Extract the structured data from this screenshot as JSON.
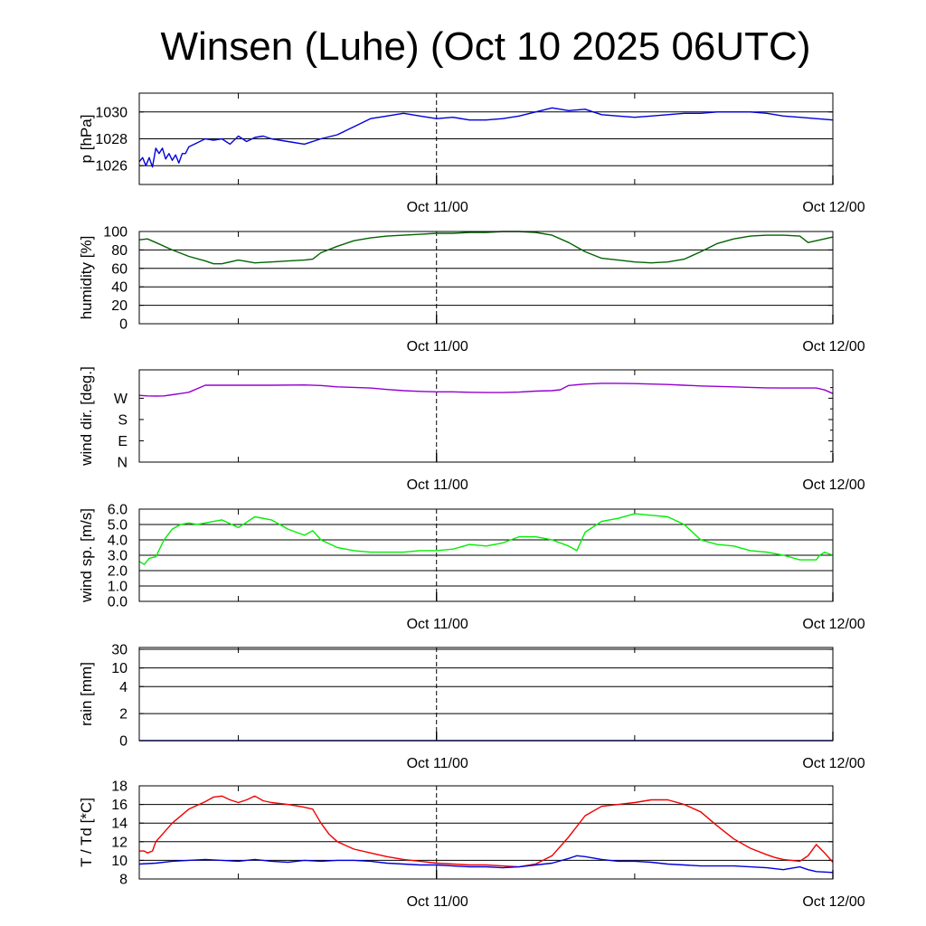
{
  "title": "Winsen (Luhe) (Oct 10 2025 06UTC)",
  "colors": {
    "pressure": "#0000dd",
    "humidity": "#006400",
    "wind_dir": "#9400d3",
    "wind_speed": "#00ee00",
    "rain": "#0000aa",
    "temperature": "#ee0000",
    "dewpoint": "#0000dd"
  },
  "chart_data": [
    {
      "type": "line",
      "ylabel": "p [hPa]",
      "ylim": [
        1024.6,
        1031.4
      ],
      "yticks": [
        1026,
        1028,
        1030
      ],
      "ytick_labels": [
        "1026",
        "1028",
        "1030"
      ],
      "grid": "horizontal",
      "x_unit": "hours since Oct 10 06UTC",
      "xticks": [
        18,
        42
      ],
      "xtick_labels": [
        "Oct 11/00",
        "Oct 12/00"
      ],
      "series": [
        {
          "color_key": "pressure",
          "x": [
            0,
            0.2,
            0.4,
            0.6,
            0.8,
            1.0,
            1.2,
            1.4,
            1.6,
            1.8,
            2.0,
            2.2,
            2.4,
            2.6,
            2.8,
            3,
            3.5,
            4,
            4.5,
            5,
            5.5,
            6,
            6.5,
            7,
            7.5,
            8,
            9,
            10,
            11,
            12,
            13,
            14,
            15,
            16,
            17,
            18,
            19,
            20,
            21,
            22,
            23,
            24,
            25,
            26,
            27,
            28,
            29,
            30,
            31,
            32,
            33,
            34,
            35,
            36,
            37,
            38,
            39,
            40,
            41,
            42
          ],
          "y": [
            1026.3,
            1026.6,
            1026.0,
            1026.6,
            1025.9,
            1027.3,
            1026.9,
            1027.3,
            1026.5,
            1026.9,
            1026.4,
            1026.8,
            1026.2,
            1026.9,
            1026.9,
            1027.4,
            1027.7,
            1028.0,
            1027.9,
            1028.0,
            1027.6,
            1028.2,
            1027.8,
            1028.1,
            1028.2,
            1028.0,
            1027.8,
            1027.6,
            1028.0,
            1028.3,
            1028.9,
            1029.5,
            1029.7,
            1029.9,
            1029.7,
            1029.5,
            1029.6,
            1029.4,
            1029.4,
            1029.5,
            1029.7,
            1030.0,
            1030.3,
            1030.1,
            1030.2,
            1029.8,
            1029.7,
            1029.6,
            1029.7,
            1029.8,
            1029.9,
            1029.9,
            1030.0,
            1030.0,
            1030.0,
            1029.9,
            1029.7,
            1029.6,
            1029.5,
            1029.4
          ]
        }
      ]
    },
    {
      "type": "line",
      "ylabel": "humidity [%]",
      "ylim": [
        0,
        100
      ],
      "yticks": [
        0,
        20,
        40,
        60,
        80,
        100
      ],
      "ytick_labels": [
        "0",
        "20",
        "40",
        "60",
        "80",
        "100"
      ],
      "grid": "horizontal",
      "xticks": [
        18,
        42
      ],
      "xtick_labels": [
        "Oct 11/00",
        "Oct 12/00"
      ],
      "series": [
        {
          "color_key": "humidity",
          "x": [
            0,
            0.5,
            1,
            2,
            3,
            4,
            4.5,
            5,
            6,
            7,
            8,
            9,
            10,
            10.5,
            11,
            12,
            13,
            14,
            15,
            16,
            17,
            18,
            19,
            20,
            21,
            22,
            23,
            24,
            25,
            26,
            27,
            28,
            29,
            30,
            31,
            32,
            33,
            34,
            35,
            36,
            37,
            38,
            39,
            40,
            40.5,
            41,
            42
          ],
          "y": [
            91,
            92,
            88,
            80,
            73,
            68,
            65,
            65,
            69,
            66,
            67,
            68,
            69,
            70,
            77,
            84,
            90,
            93,
            95,
            96,
            97,
            98,
            98,
            99,
            99,
            100,
            100,
            99,
            96,
            88,
            78,
            71,
            69,
            67,
            66,
            67,
            70,
            78,
            87,
            92,
            95,
            96,
            96,
            95,
            88,
            90,
            94
          ]
        }
      ]
    },
    {
      "type": "line",
      "ylabel": "wind dir. [deg.]",
      "ylim": [
        0,
        390
      ],
      "yticks": [
        0,
        90,
        180,
        270
      ],
      "ytick_labels": [
        "N",
        "E",
        "S",
        "W"
      ],
      "grid": "none",
      "xticks": [
        18,
        42
      ],
      "xtick_labels": [
        "Oct 11/00",
        "Oct 12/00"
      ],
      "series": [
        {
          "color_key": "wind_dir",
          "x": [
            0,
            0.5,
            1,
            1.5,
            2,
            2.5,
            3,
            4,
            6,
            8,
            10,
            11,
            12,
            13,
            14,
            15,
            16,
            17,
            18,
            19,
            20,
            21,
            22,
            23,
            24,
            25,
            25.5,
            26,
            27,
            28,
            29,
            30,
            31,
            32,
            33,
            34,
            35,
            36,
            37,
            38,
            39,
            40,
            41,
            41.5,
            42
          ],
          "y": [
            282,
            280,
            279,
            280,
            285,
            290,
            295,
            325,
            325,
            325,
            326,
            324,
            318,
            316,
            313,
            307,
            302,
            299,
            297,
            297,
            295,
            294,
            294,
            296,
            300,
            302,
            306,
            324,
            330,
            333,
            333,
            332,
            330,
            328,
            325,
            322,
            320,
            318,
            316,
            314,
            313,
            313,
            313,
            305,
            290
          ]
        }
      ]
    },
    {
      "type": "line",
      "ylabel": "wind sp. [m/s]",
      "ylim": [
        0,
        6
      ],
      "yticks": [
        0,
        1,
        2,
        3,
        4,
        5,
        6
      ],
      "ytick_labels": [
        "0.0",
        "1.0",
        "2.0",
        "3.0",
        "4.0",
        "5.0",
        "6.0"
      ],
      "grid": "horizontal",
      "xticks": [
        18,
        42
      ],
      "xtick_labels": [
        "Oct 11/00",
        "Oct 12/00"
      ],
      "series": [
        {
          "color_key": "wind_speed",
          "x": [
            0,
            0.3,
            0.6,
            1,
            1.5,
            2,
            2.5,
            3,
            3.5,
            4,
            5,
            6,
            7,
            8,
            9,
            10,
            10.5,
            11,
            12,
            13,
            14,
            15,
            16,
            17,
            18,
            19,
            20,
            21,
            22,
            23,
            24,
            25,
            26,
            26.5,
            27,
            28,
            29,
            30,
            31,
            32,
            33,
            34,
            35,
            36,
            37,
            38,
            39,
            40,
            41,
            41.2,
            41.5,
            42
          ],
          "y": [
            2.6,
            2.4,
            2.8,
            2.9,
            4.0,
            4.7,
            5.0,
            5.1,
            5.0,
            5.1,
            5.3,
            4.8,
            5.5,
            5.3,
            4.7,
            4.3,
            4.6,
            4.0,
            3.5,
            3.3,
            3.2,
            3.2,
            3.2,
            3.3,
            3.3,
            3.4,
            3.7,
            3.6,
            3.8,
            4.2,
            4.2,
            4.0,
            3.6,
            3.3,
            4.5,
            5.2,
            5.4,
            5.7,
            5.6,
            5.5,
            5.0,
            4.0,
            3.7,
            3.6,
            3.3,
            3.2,
            3.0,
            2.7,
            2.7,
            3.0,
            3.2,
            3.0
          ]
        }
      ]
    },
    {
      "type": "line",
      "ylabel": "rain [mm]",
      "yscale": "rain",
      "ylim": [
        0,
        30
      ],
      "yticks": [
        0,
        2,
        4,
        10,
        30
      ],
      "ytick_labels": [
        "0",
        "2",
        "4",
        "10",
        "30"
      ],
      "grid": "horizontal",
      "xticks": [
        18,
        42
      ],
      "xtick_labels": [
        "Oct 11/00",
        "Oct 12/00"
      ],
      "series": [
        {
          "color_key": "rain",
          "x": [
            0,
            42
          ],
          "y": [
            0,
            0
          ]
        }
      ]
    },
    {
      "type": "line",
      "ylabel": "T / Td [*C]",
      "ylim": [
        8,
        18
      ],
      "yticks": [
        8,
        10,
        12,
        14,
        16,
        18
      ],
      "ytick_labels": [
        "8",
        "10",
        "12",
        "14",
        "16",
        "18"
      ],
      "grid": "horizontal",
      "xticks": [
        18,
        42
      ],
      "xtick_labels": [
        "Oct 11/00",
        "Oct 12/00"
      ],
      "series": [
        {
          "color_key": "temperature",
          "x": [
            0,
            0.3,
            0.5,
            0.8,
            1,
            2,
            3,
            4,
            4.5,
            5,
            5.5,
            6,
            6.5,
            7,
            7.5,
            8,
            9,
            10,
            10.5,
            11,
            11.5,
            12,
            13,
            14,
            15,
            16,
            17,
            18,
            19,
            20,
            21,
            22,
            23,
            24,
            25,
            26,
            27,
            28,
            29,
            30,
            31,
            32,
            33,
            34,
            35,
            36,
            37,
            38,
            38.5,
            39,
            40,
            40.5,
            41,
            41.5,
            42
          ],
          "y": [
            11.0,
            11.0,
            10.8,
            11.0,
            12.0,
            14.0,
            15.5,
            16.3,
            16.8,
            16.9,
            16.5,
            16.2,
            16.5,
            16.9,
            16.4,
            16.2,
            16.0,
            15.7,
            15.5,
            14.0,
            12.8,
            12.0,
            11.2,
            10.8,
            10.4,
            10.1,
            9.9,
            9.7,
            9.6,
            9.5,
            9.5,
            9.4,
            9.3,
            9.6,
            10.5,
            12.5,
            14.8,
            15.8,
            16.0,
            16.2,
            16.5,
            16.5,
            16.0,
            15.2,
            13.7,
            12.3,
            11.3,
            10.6,
            10.3,
            10.1,
            9.9,
            10.5,
            11.7,
            10.8,
            9.8
          ]
        },
        {
          "color_key": "dewpoint",
          "x": [
            0,
            1,
            2,
            3,
            4,
            5,
            6,
            7,
            8,
            9,
            10,
            11,
            12,
            13,
            14,
            15,
            16,
            17,
            18,
            19,
            20,
            21,
            22,
            23,
            24,
            25,
            26,
            26.5,
            27,
            28,
            29,
            30,
            31,
            32,
            33,
            34,
            35,
            36,
            37,
            38,
            39,
            40,
            40.5,
            41,
            42
          ],
          "y": [
            9.6,
            9.7,
            9.9,
            10.0,
            10.1,
            10.0,
            9.9,
            10.1,
            9.9,
            9.8,
            10.0,
            9.9,
            10.0,
            10.0,
            9.9,
            9.7,
            9.6,
            9.5,
            9.5,
            9.4,
            9.3,
            9.3,
            9.2,
            9.3,
            9.5,
            9.7,
            10.2,
            10.5,
            10.4,
            10.1,
            9.9,
            9.9,
            9.8,
            9.6,
            9.5,
            9.4,
            9.4,
            9.4,
            9.3,
            9.2,
            9.0,
            9.3,
            9.0,
            8.8,
            8.7
          ]
        }
      ]
    }
  ]
}
